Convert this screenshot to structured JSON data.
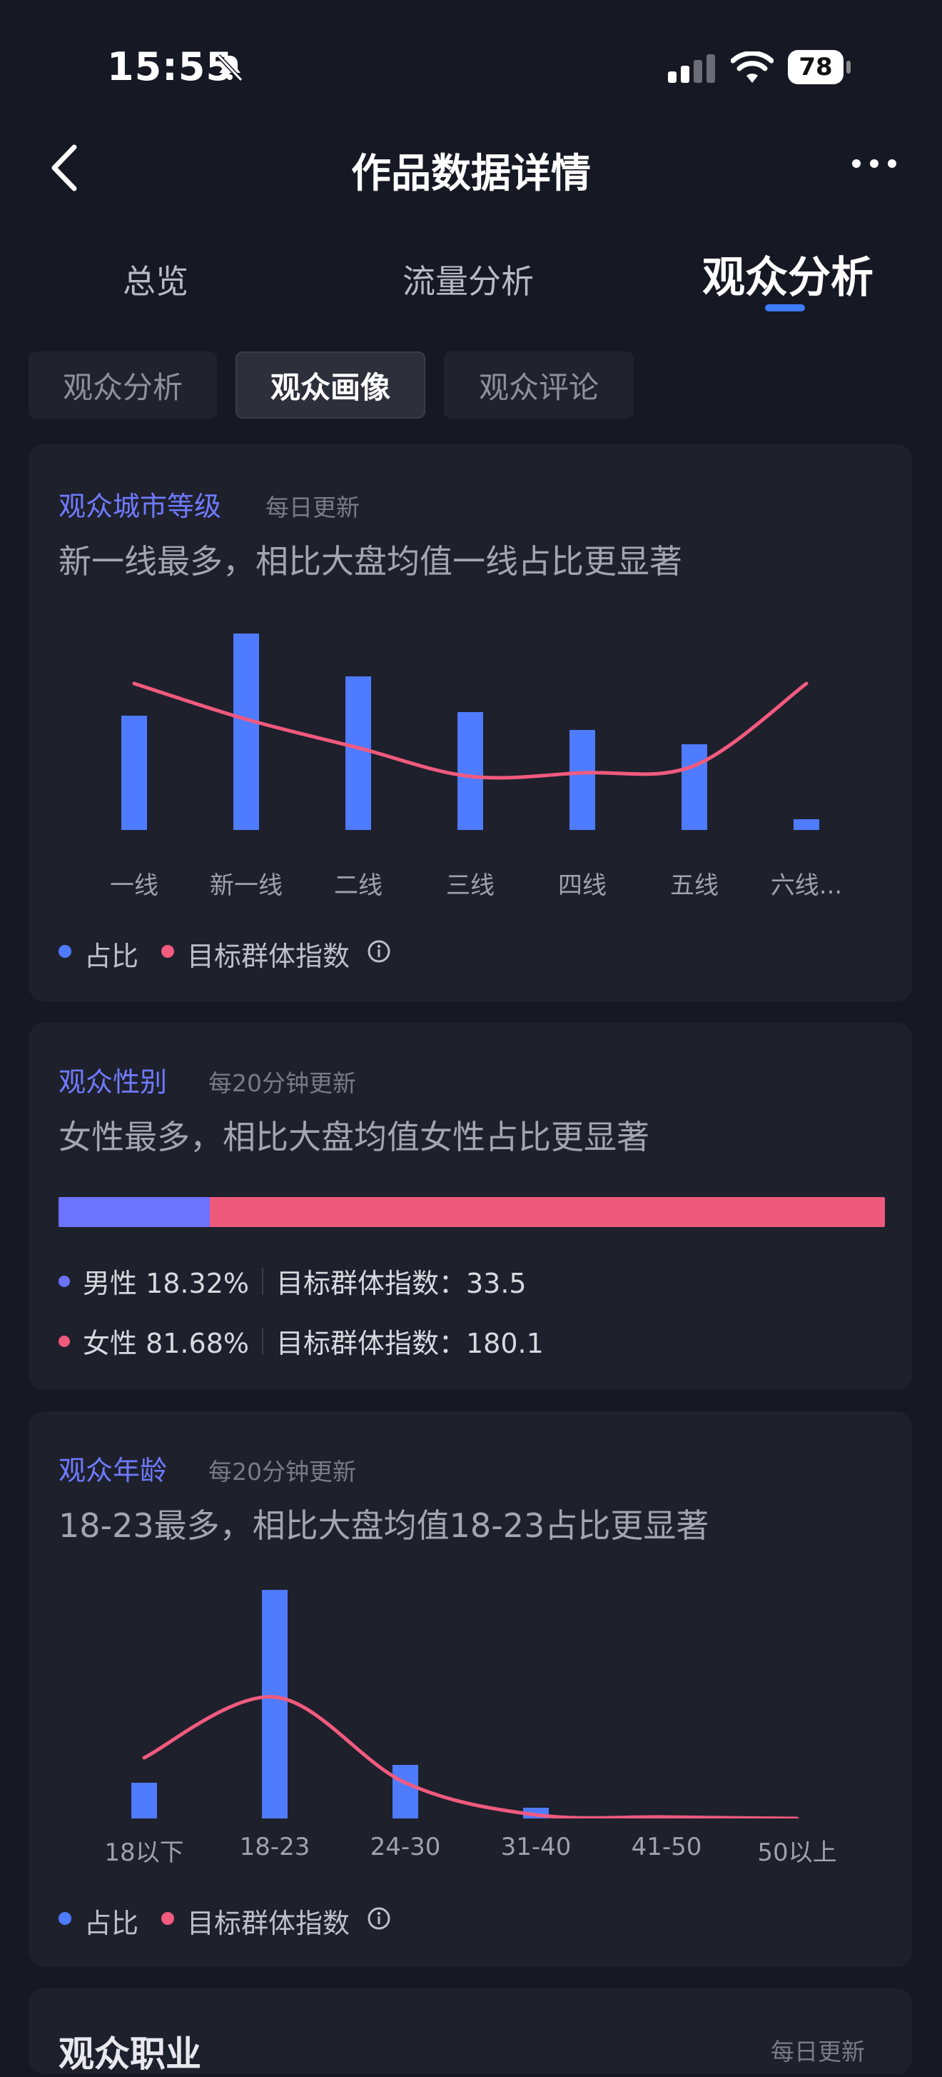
{
  "status": {
    "time": "15:55",
    "battery": "78"
  },
  "nav": {
    "title": "作品数据详情"
  },
  "tabs": [
    {
      "label": "总览",
      "active": false
    },
    {
      "label": "流量分析",
      "active": false
    },
    {
      "label": "观众分析",
      "active": true
    }
  ],
  "subtabs": [
    {
      "label": "观众分析",
      "active": false
    },
    {
      "label": "观众画像",
      "active": true
    },
    {
      "label": "观众评论",
      "active": false
    }
  ],
  "legend": {
    "share": "占比",
    "index": "目标群体指数"
  },
  "colors": {
    "share": "#4f7bff",
    "index": "#f25a7e",
    "male": "#6b73ff",
    "female": "#ee5a7b"
  },
  "city": {
    "title": "观众城市等级",
    "update": "每日更新",
    "desc": "新一线最多，相比大盘均值一线占比更显著"
  },
  "gender": {
    "title": "观众性别",
    "update": "每20分钟更新",
    "desc": "女性最多，相比大盘均值女性占比更显著",
    "male_label": "男性 18.32%",
    "male_index": "目标群体指数：33.5",
    "female_label": "女性 81.68%",
    "female_index": "目标群体指数：180.1",
    "male_share": 18.32
  },
  "age": {
    "title": "观众年龄",
    "update": "每20分钟更新",
    "desc": "18-23最多，相比大盘均值18-23占比更显著"
  },
  "next_card": {
    "title": "观众职业",
    "update": "每日更新"
  },
  "chart_data": [
    {
      "type": "bar",
      "categories": [
        "一线",
        "新一线",
        "二线",
        "三线",
        "四线",
        "五线",
        "六线..."
      ],
      "series": [
        {
          "name": "占比",
          "values": [
            16,
            27.5,
            21.5,
            16.5,
            14,
            12,
            1.5
          ]
        },
        {
          "name": "目标群体指数",
          "type": "line",
          "values": [
            20.5,
            15.5,
            11.5,
            7.5,
            8,
            9,
            20.5
          ]
        }
      ],
      "legend": "bottom-left"
    },
    {
      "type": "bar",
      "categories": [
        "18以下",
        "18-23",
        "24-30",
        "31-40",
        "41-50",
        "50以上"
      ],
      "series": [
        {
          "name": "占比",
          "values": [
            5,
            32,
            7.5,
            1.5,
            0,
            0
          ]
        },
        {
          "name": "目标群体指数",
          "type": "line",
          "values": [
            8.5,
            17,
            5,
            0.5,
            0.2,
            0
          ]
        }
      ],
      "legend": "bottom-left"
    }
  ]
}
